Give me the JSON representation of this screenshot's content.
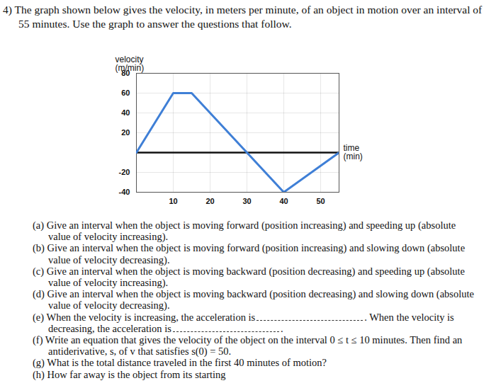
{
  "header": "4) The graph shown below gives the velocity, in meters per minute, of an object in motion over an interval of 55 minutes. Use the graph to answer the questions that follow.",
  "chart_data": {
    "type": "line",
    "x": [
      0,
      10,
      15,
      30,
      40,
      55
    ],
    "values": [
      0,
      60,
      60,
      0,
      -40,
      0
    ],
    "color": "#3f7fd6",
    "x_label": "time (min)",
    "y_label": "velocity (m/min)",
    "xlim": [
      0,
      55
    ],
    "ylim": [
      -40,
      80
    ],
    "xticks": [
      10,
      20,
      30,
      40,
      50
    ],
    "yticks": [
      -40,
      -20,
      20,
      40,
      60,
      80
    ],
    "grid": true
  },
  "questions": [
    {
      "label": "(a)",
      "parts": [
        "Give an interval when the object is moving forward (position increasing) and speeding up (absolute value of velocity increasing)."
      ]
    },
    {
      "label": "(b)",
      "parts": [
        "Give an interval when the object is moving forward (position increasing) and slowing down (absolute value of velocity decreasing)."
      ]
    },
    {
      "label": "(c)",
      "parts": [
        "Give an interval when the object is moving backward (position decreasing) and speeding up (absolute value of velocity increasing)."
      ]
    },
    {
      "label": "(d)",
      "parts": [
        "Give an interval when the object is moving backward (position decreasing) and slowing down (absolute value of velocity decreasing)."
      ]
    },
    {
      "label": "(e)",
      "parts": [
        "When the velocity is increasing, the acceleration is",
        ". When the velocity is decreasing, the acceleration is",
        "."
      ]
    },
    {
      "label": "(f)",
      "parts": [
        "Write an equation that gives the velocity of the object on the interval 0 ≤ t ≤ 10 minutes. Then find an antiderivative, s, of v that satisfies s(0) = 50."
      ]
    },
    {
      "label": "(g)",
      "parts": [
        "What is the total distance traveled in the first 40 minutes of motion?"
      ]
    },
    {
      "label": "(h)",
      "parts": [
        "How far away is the object from its starting"
      ]
    }
  ]
}
